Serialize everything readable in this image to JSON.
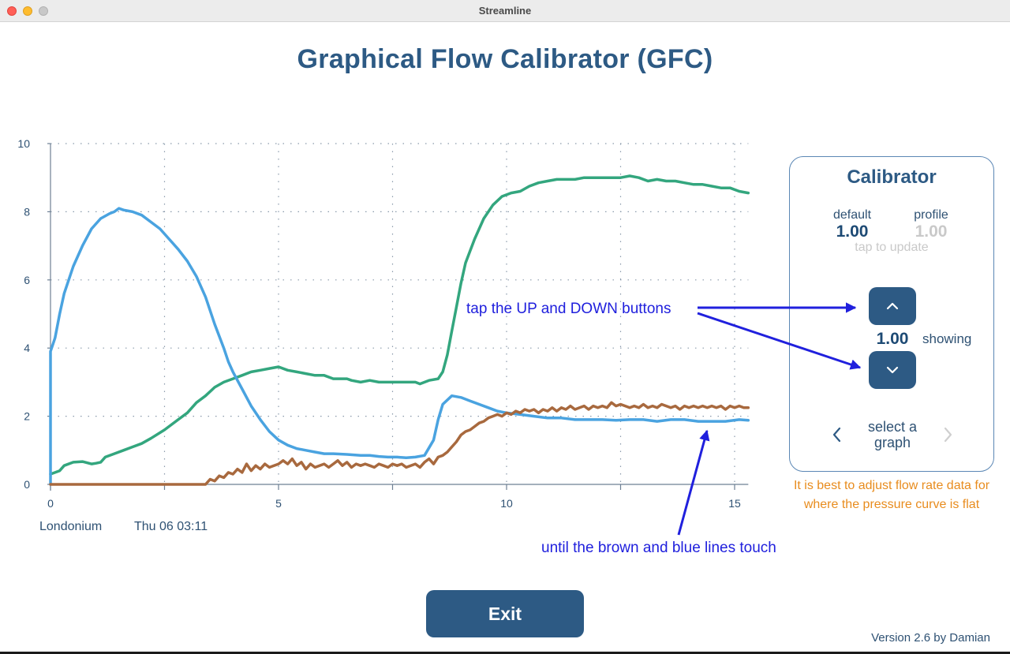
{
  "window": {
    "title": "Streamline"
  },
  "page": {
    "title": "Graphical Flow Calibrator (GFC)"
  },
  "graph": {
    "location": "Londonium",
    "datetime": "Thu 06  03:11"
  },
  "chart_data": {
    "type": "line",
    "title": "",
    "xlabel": "",
    "ylabel": "",
    "xlim": [
      0,
      15.3
    ],
    "ylim": [
      0,
      10
    ],
    "x_ticks": [
      0,
      5,
      10,
      15
    ],
    "y_ticks": [
      0,
      2,
      4,
      6,
      8,
      10
    ],
    "grid": true,
    "legend": "none",
    "series": [
      {
        "color": "#33a67e",
        "points": [
          [
            0,
            0.3
          ],
          [
            0.1,
            0.35
          ],
          [
            0.2,
            0.4
          ],
          [
            0.3,
            0.55
          ],
          [
            0.5,
            0.65
          ],
          [
            0.7,
            0.67
          ],
          [
            0.9,
            0.6
          ],
          [
            1.0,
            0.62
          ],
          [
            1.1,
            0.65
          ],
          [
            1.2,
            0.8
          ],
          [
            1.4,
            0.9
          ],
          [
            1.6,
            1.0
          ],
          [
            1.8,
            1.1
          ],
          [
            2.0,
            1.2
          ],
          [
            2.2,
            1.35
          ],
          [
            2.5,
            1.6
          ],
          [
            2.8,
            1.9
          ],
          [
            3.0,
            2.1
          ],
          [
            3.2,
            2.4
          ],
          [
            3.4,
            2.6
          ],
          [
            3.6,
            2.85
          ],
          [
            3.8,
            3.0
          ],
          [
            4.0,
            3.1
          ],
          [
            4.2,
            3.2
          ],
          [
            4.4,
            3.3
          ],
          [
            4.6,
            3.35
          ],
          [
            4.8,
            3.4
          ],
          [
            5.0,
            3.45
          ],
          [
            5.2,
            3.35
          ],
          [
            5.4,
            3.3
          ],
          [
            5.6,
            3.25
          ],
          [
            5.8,
            3.2
          ],
          [
            6.0,
            3.2
          ],
          [
            6.2,
            3.1
          ],
          [
            6.4,
            3.1
          ],
          [
            6.5,
            3.1
          ],
          [
            6.6,
            3.05
          ],
          [
            6.8,
            3.0
          ],
          [
            7.0,
            3.05
          ],
          [
            7.2,
            3.0
          ],
          [
            7.4,
            3.0
          ],
          [
            7.6,
            3.0
          ],
          [
            7.8,
            3.0
          ],
          [
            8.0,
            3.0
          ],
          [
            8.1,
            2.95
          ],
          [
            8.3,
            3.05
          ],
          [
            8.5,
            3.1
          ],
          [
            8.6,
            3.3
          ],
          [
            8.7,
            3.8
          ],
          [
            8.8,
            4.5
          ],
          [
            8.9,
            5.2
          ],
          [
            9.0,
            5.9
          ],
          [
            9.1,
            6.5
          ],
          [
            9.3,
            7.2
          ],
          [
            9.5,
            7.8
          ],
          [
            9.7,
            8.2
          ],
          [
            9.9,
            8.45
          ],
          [
            10.1,
            8.55
          ],
          [
            10.3,
            8.6
          ],
          [
            10.5,
            8.75
          ],
          [
            10.7,
            8.85
          ],
          [
            10.9,
            8.9
          ],
          [
            11.1,
            8.95
          ],
          [
            11.3,
            8.95
          ],
          [
            11.5,
            8.95
          ],
          [
            11.7,
            9.0
          ],
          [
            11.9,
            9.0
          ],
          [
            12.1,
            9.0
          ],
          [
            12.3,
            9.0
          ],
          [
            12.5,
            9.0
          ],
          [
            12.7,
            9.05
          ],
          [
            12.9,
            9.0
          ],
          [
            13.1,
            8.9
          ],
          [
            13.3,
            8.95
          ],
          [
            13.5,
            8.9
          ],
          [
            13.7,
            8.9
          ],
          [
            13.9,
            8.85
          ],
          [
            14.1,
            8.8
          ],
          [
            14.3,
            8.8
          ],
          [
            14.5,
            8.75
          ],
          [
            14.7,
            8.7
          ],
          [
            14.9,
            8.7
          ],
          [
            15.1,
            8.6
          ],
          [
            15.3,
            8.55
          ]
        ]
      },
      {
        "color": "#4aa3e0",
        "points": [
          [
            0,
            0
          ],
          [
            0,
            3.9
          ],
          [
            0.1,
            4.3
          ],
          [
            0.2,
            5.0
          ],
          [
            0.3,
            5.6
          ],
          [
            0.5,
            6.4
          ],
          [
            0.7,
            7.0
          ],
          [
            0.9,
            7.5
          ],
          [
            1.1,
            7.8
          ],
          [
            1.3,
            7.95
          ],
          [
            1.4,
            8.0
          ],
          [
            1.5,
            8.1
          ],
          [
            1.6,
            8.05
          ],
          [
            1.8,
            8.0
          ],
          [
            2.0,
            7.9
          ],
          [
            2.2,
            7.7
          ],
          [
            2.4,
            7.5
          ],
          [
            2.6,
            7.2
          ],
          [
            2.8,
            6.9
          ],
          [
            3.0,
            6.55
          ],
          [
            3.2,
            6.1
          ],
          [
            3.4,
            5.5
          ],
          [
            3.6,
            4.7
          ],
          [
            3.8,
            4.0
          ],
          [
            3.9,
            3.6
          ],
          [
            4.0,
            3.3
          ],
          [
            4.2,
            2.8
          ],
          [
            4.4,
            2.3
          ],
          [
            4.6,
            1.9
          ],
          [
            4.8,
            1.55
          ],
          [
            5.0,
            1.3
          ],
          [
            5.2,
            1.15
          ],
          [
            5.4,
            1.05
          ],
          [
            5.6,
            1.0
          ],
          [
            5.8,
            0.95
          ],
          [
            6.0,
            0.9
          ],
          [
            6.2,
            0.9
          ],
          [
            6.5,
            0.88
          ],
          [
            6.8,
            0.85
          ],
          [
            7.0,
            0.85
          ],
          [
            7.2,
            0.82
          ],
          [
            7.4,
            0.8
          ],
          [
            7.6,
            0.8
          ],
          [
            7.8,
            0.78
          ],
          [
            8.0,
            0.8
          ],
          [
            8.2,
            0.85
          ],
          [
            8.4,
            1.3
          ],
          [
            8.5,
            1.9
          ],
          [
            8.6,
            2.35
          ],
          [
            8.8,
            2.6
          ],
          [
            9.0,
            2.55
          ],
          [
            9.2,
            2.45
          ],
          [
            9.4,
            2.35
          ],
          [
            9.6,
            2.25
          ],
          [
            9.8,
            2.15
          ],
          [
            10.0,
            2.1
          ],
          [
            10.3,
            2.05
          ],
          [
            10.6,
            2.0
          ],
          [
            10.9,
            1.95
          ],
          [
            11.2,
            1.95
          ],
          [
            11.5,
            1.9
          ],
          [
            11.8,
            1.9
          ],
          [
            12.1,
            1.9
          ],
          [
            12.4,
            1.88
          ],
          [
            12.7,
            1.9
          ],
          [
            13.0,
            1.9
          ],
          [
            13.3,
            1.85
          ],
          [
            13.6,
            1.9
          ],
          [
            13.9,
            1.9
          ],
          [
            14.2,
            1.85
          ],
          [
            14.5,
            1.85
          ],
          [
            14.8,
            1.85
          ],
          [
            15.1,
            1.9
          ],
          [
            15.3,
            1.88
          ]
        ]
      },
      {
        "color": "#a8693e",
        "points": [
          [
            0,
            0
          ],
          [
            3.4,
            0
          ],
          [
            3.5,
            0.15
          ],
          [
            3.6,
            0.1
          ],
          [
            3.7,
            0.25
          ],
          [
            3.8,
            0.2
          ],
          [
            3.9,
            0.35
          ],
          [
            4.0,
            0.3
          ],
          [
            4.1,
            0.45
          ],
          [
            4.2,
            0.35
          ],
          [
            4.3,
            0.6
          ],
          [
            4.4,
            0.4
          ],
          [
            4.5,
            0.55
          ],
          [
            4.6,
            0.45
          ],
          [
            4.7,
            0.6
          ],
          [
            4.8,
            0.5
          ],
          [
            4.9,
            0.55
          ],
          [
            5.0,
            0.6
          ],
          [
            5.1,
            0.7
          ],
          [
            5.2,
            0.6
          ],
          [
            5.3,
            0.75
          ],
          [
            5.4,
            0.55
          ],
          [
            5.5,
            0.65
          ],
          [
            5.6,
            0.45
          ],
          [
            5.7,
            0.6
          ],
          [
            5.8,
            0.5
          ],
          [
            5.9,
            0.55
          ],
          [
            6.0,
            0.6
          ],
          [
            6.1,
            0.5
          ],
          [
            6.2,
            0.6
          ],
          [
            6.3,
            0.7
          ],
          [
            6.4,
            0.55
          ],
          [
            6.5,
            0.65
          ],
          [
            6.6,
            0.5
          ],
          [
            6.7,
            0.6
          ],
          [
            6.8,
            0.55
          ],
          [
            6.9,
            0.6
          ],
          [
            7.0,
            0.55
          ],
          [
            7.1,
            0.5
          ],
          [
            7.2,
            0.6
          ],
          [
            7.3,
            0.55
          ],
          [
            7.4,
            0.5
          ],
          [
            7.5,
            0.6
          ],
          [
            7.6,
            0.55
          ],
          [
            7.7,
            0.6
          ],
          [
            7.8,
            0.5
          ],
          [
            7.9,
            0.55
          ],
          [
            8.0,
            0.6
          ],
          [
            8.1,
            0.5
          ],
          [
            8.2,
            0.65
          ],
          [
            8.3,
            0.75
          ],
          [
            8.4,
            0.6
          ],
          [
            8.5,
            0.8
          ],
          [
            8.6,
            0.85
          ],
          [
            8.7,
            0.95
          ],
          [
            8.8,
            1.1
          ],
          [
            8.9,
            1.25
          ],
          [
            9.0,
            1.45
          ],
          [
            9.1,
            1.55
          ],
          [
            9.2,
            1.6
          ],
          [
            9.3,
            1.7
          ],
          [
            9.4,
            1.8
          ],
          [
            9.5,
            1.85
          ],
          [
            9.6,
            1.95
          ],
          [
            9.7,
            2.0
          ],
          [
            9.8,
            2.05
          ],
          [
            9.9,
            2.0
          ],
          [
            10.0,
            2.1
          ],
          [
            10.1,
            2.05
          ],
          [
            10.2,
            2.15
          ],
          [
            10.3,
            2.1
          ],
          [
            10.4,
            2.2
          ],
          [
            10.5,
            2.15
          ],
          [
            10.6,
            2.2
          ],
          [
            10.7,
            2.1
          ],
          [
            10.8,
            2.2
          ],
          [
            10.9,
            2.15
          ],
          [
            11.0,
            2.25
          ],
          [
            11.1,
            2.15
          ],
          [
            11.2,
            2.25
          ],
          [
            11.3,
            2.2
          ],
          [
            11.4,
            2.3
          ],
          [
            11.5,
            2.2
          ],
          [
            11.6,
            2.25
          ],
          [
            11.7,
            2.3
          ],
          [
            11.8,
            2.2
          ],
          [
            11.9,
            2.3
          ],
          [
            12.0,
            2.25
          ],
          [
            12.1,
            2.3
          ],
          [
            12.2,
            2.25
          ],
          [
            12.3,
            2.4
          ],
          [
            12.4,
            2.3
          ],
          [
            12.5,
            2.35
          ],
          [
            12.6,
            2.3
          ],
          [
            12.7,
            2.25
          ],
          [
            12.8,
            2.3
          ],
          [
            12.9,
            2.25
          ],
          [
            13.0,
            2.35
          ],
          [
            13.1,
            2.25
          ],
          [
            13.2,
            2.3
          ],
          [
            13.3,
            2.25
          ],
          [
            13.4,
            2.35
          ],
          [
            13.5,
            2.3
          ],
          [
            13.6,
            2.25
          ],
          [
            13.7,
            2.3
          ],
          [
            13.8,
            2.2
          ],
          [
            13.9,
            2.3
          ],
          [
            14.0,
            2.25
          ],
          [
            14.1,
            2.3
          ],
          [
            14.2,
            2.25
          ],
          [
            14.3,
            2.3
          ],
          [
            14.4,
            2.25
          ],
          [
            14.5,
            2.3
          ],
          [
            14.6,
            2.25
          ],
          [
            14.7,
            2.3
          ],
          [
            14.8,
            2.2
          ],
          [
            14.9,
            2.3
          ],
          [
            15.0,
            2.25
          ],
          [
            15.1,
            2.3
          ],
          [
            15.2,
            2.25
          ],
          [
            15.3,
            2.25
          ]
        ]
      }
    ]
  },
  "calibrator": {
    "title": "Calibrator",
    "default_label": "default",
    "default_value": "1.00",
    "profile_label": "profile",
    "profile_value": "1.00",
    "tap_hint": "tap to update",
    "current_value": "1.00",
    "showing_label": "showing",
    "select_graph_line1": "select a",
    "select_graph_line2": "graph",
    "accent_color": "#2d5a84",
    "up_icon": "chevron-up-icon",
    "down_icon": "chevron-down-icon"
  },
  "advice": "It is best to adjust flow rate data for where the pressure curve is flat",
  "annotations": {
    "top": "tap the UP and DOWN buttons",
    "bottom": "until the brown and blue lines touch"
  },
  "exit_label": "Exit",
  "version": "Version 2.6  by Damian"
}
